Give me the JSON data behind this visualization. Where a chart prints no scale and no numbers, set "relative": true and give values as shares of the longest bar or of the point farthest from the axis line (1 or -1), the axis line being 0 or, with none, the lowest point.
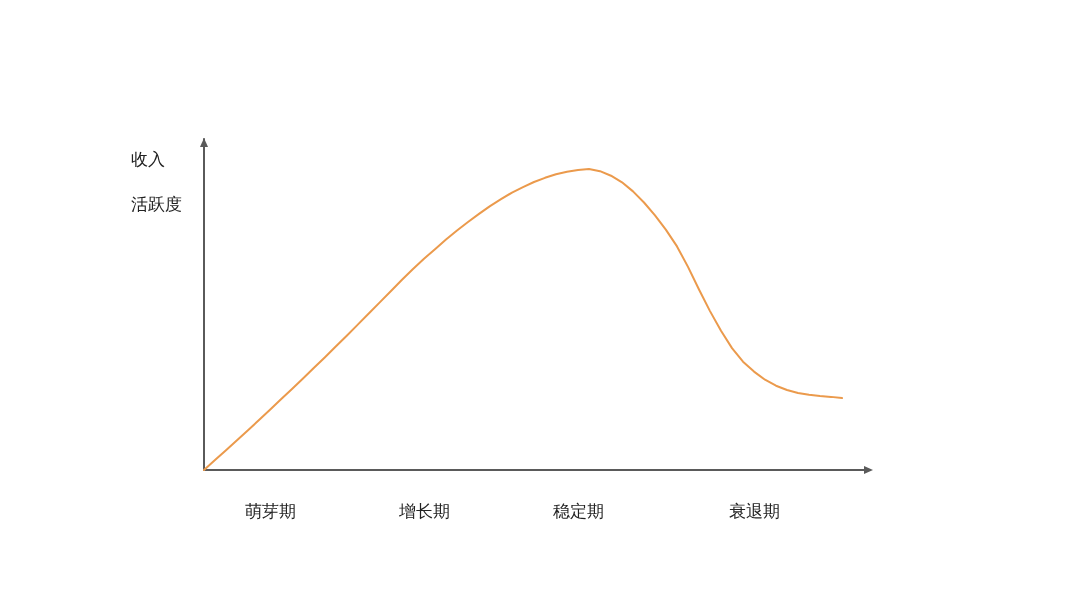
{
  "chart_data": {
    "type": "line",
    "relative": true,
    "ylabel": "收入",
    "annotations": [
      "活跃度"
    ],
    "categories": [
      null,
      null,
      null,
      null,
      null,
      null,
      "萌芽期",
      null,
      null,
      null,
      null,
      null,
      null,
      null,
      null,
      null,
      null,
      null,
      null,
      null,
      "增长期",
      null,
      null,
      null,
      null,
      null,
      null,
      null,
      null,
      null,
      null,
      null,
      null,
      null,
      "稳定期",
      null,
      null,
      null,
      null,
      null,
      null,
      null,
      null,
      null,
      null,
      null,
      null,
      null,
      null,
      null,
      "衰退期",
      null,
      null,
      null,
      null,
      null,
      null,
      null,
      null,
      null,
      null
    ],
    "series": [
      {
        "color": "#eb9a4c",
        "values": [
          0,
          0.033,
          0.066,
          0.099,
          0.132,
          0.166,
          0.2,
          0.235,
          0.269,
          0.304,
          0.34,
          0.375,
          0.411,
          0.447,
          0.484,
          0.521,
          0.558,
          0.595,
          0.632,
          0.668,
          0.702,
          0.734,
          0.766,
          0.796,
          0.824,
          0.851,
          0.877,
          0.9,
          0.922,
          0.94,
          0.957,
          0.971,
          0.983,
          0.991,
          0.997,
          1,
          0.993,
          0.978,
          0.956,
          0.926,
          0.889,
          0.846,
          0.798,
          0.743,
          0.675,
          0.6,
          0.528,
          0.463,
          0.405,
          0.36,
          0.327,
          0.3,
          0.28,
          0.266,
          0.256,
          0.25,
          0.246,
          0.243,
          0.239,
          null,
          null
        ]
      }
    ],
    "marker": "none",
    "line_style": "solid"
  }
}
